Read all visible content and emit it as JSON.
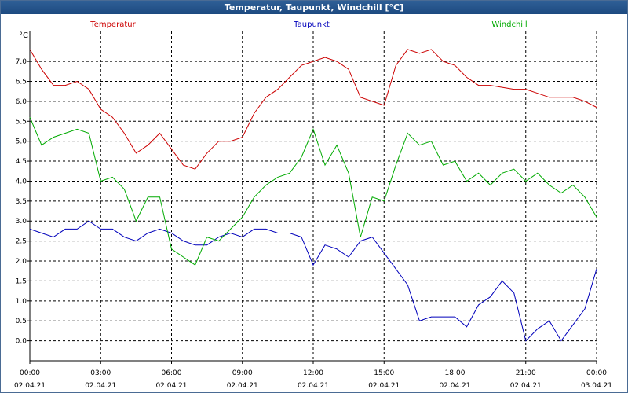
{
  "window": {
    "title": "Temperatur, Taupunkt, Windchill [°C]"
  },
  "colors": {
    "temperatur": "#cc0000",
    "taupunkt": "#0000bb",
    "windchill": "#00aa00",
    "grid": "#000000"
  },
  "chart_data": {
    "type": "line",
    "title": "Temperatur, Taupunkt, Windchill [°C]",
    "ylabel": "°C",
    "ylim": [
      -0.5,
      7.75
    ],
    "xlim": [
      0,
      24
    ],
    "yticks": [
      "0.0",
      "0.5",
      "1.0",
      "1.5",
      "2.0",
      "2.5",
      "3.0",
      "3.5",
      "4.0",
      "4.5",
      "5.0",
      "5.5",
      "6.0",
      "6.5",
      "7.0"
    ],
    "xticks": [
      {
        "time": "00:00",
        "date": "02.04.21"
      },
      {
        "time": "03:00",
        "date": "02.04.21"
      },
      {
        "time": "06:00",
        "date": "02.04.21"
      },
      {
        "time": "09:00",
        "date": "02.04.21"
      },
      {
        "time": "12:00",
        "date": "02.04.21"
      },
      {
        "time": "15:00",
        "date": "02.04.21"
      },
      {
        "time": "18:00",
        "date": "02.04.21"
      },
      {
        "time": "21:00",
        "date": "02.04.21"
      },
      {
        "time": "00:00",
        "date": "03.04.21"
      }
    ],
    "grid": true,
    "x_hours": [
      0,
      0.5,
      1,
      1.5,
      2,
      2.5,
      3,
      3.5,
      4,
      4.5,
      5,
      5.5,
      6,
      6.5,
      7,
      7.5,
      8,
      8.5,
      9,
      9.5,
      10,
      10.5,
      11,
      11.5,
      12,
      12.5,
      13,
      13.5,
      14,
      14.5,
      15,
      15.5,
      16,
      16.5,
      17,
      17.5,
      18,
      18.5,
      19,
      19.5,
      20,
      20.5,
      21,
      21.5,
      22,
      22.5,
      23,
      23.5,
      24
    ],
    "series": [
      {
        "name": "Temperatur",
        "values": [
          7.3,
          6.8,
          6.4,
          6.4,
          6.5,
          6.3,
          5.8,
          5.6,
          5.2,
          4.7,
          4.9,
          5.2,
          4.8,
          4.4,
          4.3,
          4.7,
          5.0,
          5.0,
          5.1,
          5.7,
          6.1,
          6.3,
          6.6,
          6.9,
          7.0,
          7.1,
          7.0,
          6.8,
          6.1,
          6.0,
          5.9,
          6.9,
          7.3,
          7.2,
          7.3,
          7.0,
          6.9,
          6.6,
          6.4,
          6.4,
          6.35,
          6.3,
          6.3,
          6.2,
          6.1,
          6.1,
          6.1,
          6.0,
          5.85
        ]
      },
      {
        "name": "Taupunkt",
        "values": [
          2.8,
          2.7,
          2.6,
          2.8,
          2.8,
          3.0,
          2.8,
          2.8,
          2.6,
          2.5,
          2.7,
          2.8,
          2.7,
          2.5,
          2.4,
          2.4,
          2.6,
          2.7,
          2.6,
          2.8,
          2.8,
          2.7,
          2.7,
          2.6,
          1.9,
          2.4,
          2.3,
          2.1,
          2.5,
          2.6,
          2.2,
          1.8,
          1.4,
          0.5,
          0.6,
          0.6,
          0.6,
          0.35,
          0.9,
          1.1,
          1.5,
          1.2,
          0.0,
          0.3,
          0.5,
          0.0,
          0.4,
          0.8,
          1.8
        ]
      },
      {
        "name": "Windchill",
        "values": [
          5.6,
          4.9,
          5.1,
          5.2,
          5.3,
          5.2,
          4.0,
          4.1,
          3.8,
          3.0,
          3.6,
          3.6,
          2.3,
          2.1,
          1.9,
          2.6,
          2.5,
          2.8,
          3.1,
          3.6,
          3.9,
          4.1,
          4.2,
          4.6,
          5.3,
          4.4,
          4.9,
          4.2,
          2.6,
          3.6,
          3.5,
          4.4,
          5.2,
          4.9,
          5.0,
          4.4,
          4.5,
          4.0,
          4.2,
          3.9,
          4.2,
          4.3,
          4.0,
          4.2,
          3.9,
          3.7,
          3.9,
          3.6,
          3.1
        ]
      }
    ]
  }
}
